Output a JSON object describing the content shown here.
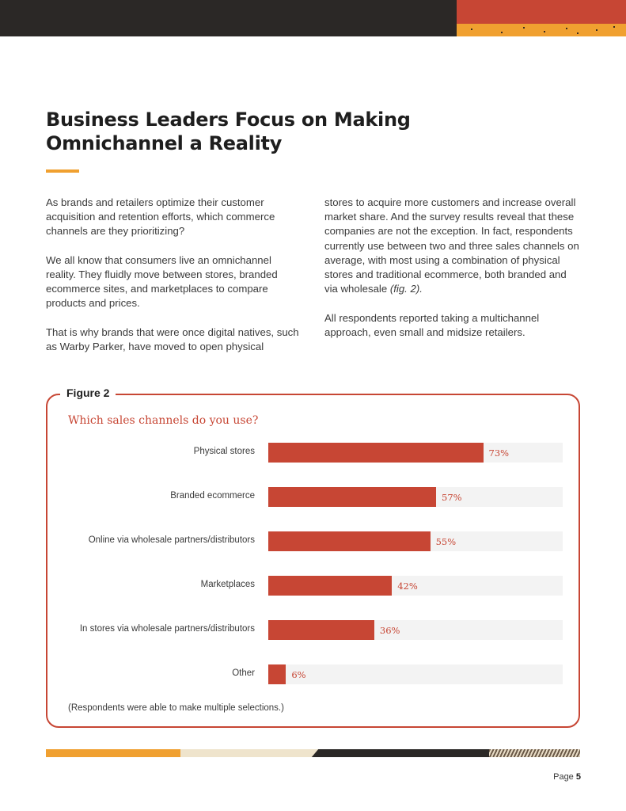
{
  "header": {
    "title": "Business Leaders Focus on Making Omnichannel a Reality"
  },
  "body": {
    "left_paragraphs": [
      "As brands and retailers optimize their customer acquisition and retention efforts, which commerce channels are they prioritizing?",
      "We all know that consumers live an omnichannel reality. They fluidly move between stores, branded ecommerce sites, and marketplaces to compare products and prices.",
      "That is why brands that were once digital natives, such as Warby Parker, have moved to open physical"
    ],
    "right_paragraph_1": "stores to acquire more customers and increase overall market share. And the survey results reveal that these companies are not the exception. In fact, respondents currently use between two and three sales channels on average, with most using a combination of physical stores and traditional ecommerce, both branded and via wholesale ",
    "right_paragraph_1_ref": "(fig. 2).",
    "right_paragraph_2": "All respondents reported taking a multichannel approach, even small and midsize retailers."
  },
  "figure": {
    "label": "Figure 2",
    "note": "(Respondents were able to make multiple selections.)"
  },
  "chart_data": {
    "type": "bar",
    "orientation": "horizontal",
    "title": "Which sales channels do you use?",
    "categories": [
      "Physical stores",
      "Branded ecommerce",
      "Online via wholesale partners/distributors",
      "Marketplaces",
      "In stores via wholesale partners/distributors",
      "Other"
    ],
    "values": [
      73,
      57,
      55,
      42,
      36,
      6
    ],
    "value_labels": [
      "73%",
      "57%",
      "55%",
      "42%",
      "36%",
      "6%"
    ],
    "xlim": [
      0,
      100
    ],
    "xlabel": "",
    "ylabel": "",
    "grid": false,
    "legend": "none"
  },
  "colors": {
    "accent_red": "#c74634",
    "accent_orange": "#f0a030",
    "dark": "#2b2826",
    "track": "#f3f3f3"
  },
  "footer": {
    "page_label": "Page",
    "page_number": "5"
  }
}
